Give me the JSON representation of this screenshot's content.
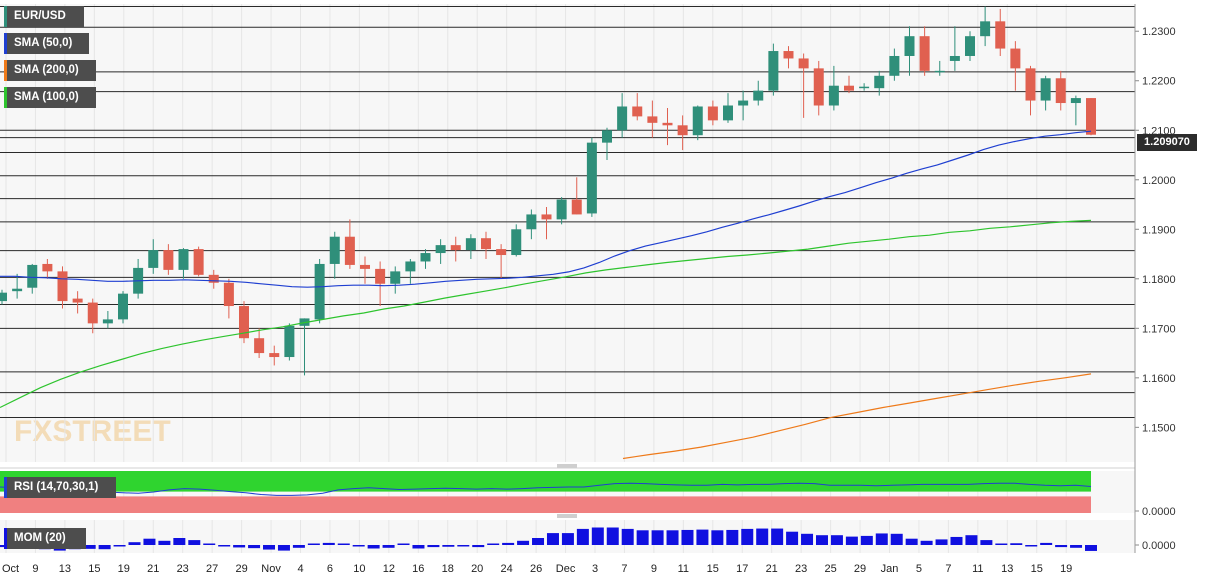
{
  "legend": {
    "symbol": "EUR/USD",
    "sma50": "SMA (50,0)",
    "sma200": "SMA (200,0)",
    "sma100": "SMA (100,0)",
    "rsi": "RSI (14,70,30,1)",
    "mom": "MOM (20)"
  },
  "last_price_label": "1.209070",
  "watermark": "FXSTREET",
  "colors": {
    "up": "#2f8f7a",
    "down": "#e06050",
    "sma50": "#1f3fd1",
    "sma100": "#2ec42e",
    "sma200": "#ee7a1a",
    "mom": "#1010e0",
    "rsi_over": "#2fd42f",
    "rsi_under": "#f08080"
  },
  "chart_data": [
    {
      "type": "candlestick",
      "title": "EUR/USD",
      "x_tick_labels": [
        "Oct",
        "9",
        "13",
        "15",
        "19",
        "21",
        "23",
        "27",
        "29",
        "Nov",
        "4",
        "6",
        "10",
        "12",
        "16",
        "18",
        "20",
        "24",
        "26",
        "Dec",
        "3",
        "7",
        "9",
        "11",
        "15",
        "17",
        "21",
        "23",
        "25",
        "29",
        "Jan",
        "5",
        "7",
        "11",
        "13",
        "15",
        "19"
      ],
      "y_ticks": [
        "1.1500",
        "1.1600",
        "1.1700",
        "1.1800",
        "1.1900",
        "1.2000",
        "1.2100",
        "1.2200",
        "1.2300"
      ],
      "ylim": [
        1.143,
        1.2355
      ],
      "grid": true,
      "horizontal_levels": [
        1.152,
        1.157,
        1.1612,
        1.17,
        1.1748,
        1.1803,
        1.1857,
        1.1915,
        1.1962,
        1.2008,
        1.2055,
        1.2085,
        1.21,
        1.2178,
        1.2218,
        1.2308,
        1.235
      ],
      "candles": [
        [
          1.1755,
          1.1778,
          1.1748,
          1.1772
        ],
        [
          1.1775,
          1.181,
          1.176,
          1.178
        ],
        [
          1.1782,
          1.183,
          1.177,
          1.1828
        ],
        [
          1.183,
          1.184,
          1.18,
          1.1815
        ],
        [
          1.1815,
          1.1825,
          1.174,
          1.1755
        ],
        [
          1.176,
          1.1775,
          1.173,
          1.1752
        ],
        [
          1.1752,
          1.176,
          1.169,
          1.171
        ],
        [
          1.171,
          1.1735,
          1.17,
          1.1718
        ],
        [
          1.1718,
          1.1775,
          1.171,
          1.177
        ],
        [
          1.177,
          1.184,
          1.176,
          1.1822
        ],
        [
          1.1822,
          1.188,
          1.181,
          1.1858
        ],
        [
          1.1858,
          1.187,
          1.1808,
          1.1818
        ],
        [
          1.1818,
          1.1862,
          1.18,
          1.186
        ],
        [
          1.186,
          1.1865,
          1.1805,
          1.1808
        ],
        [
          1.1808,
          1.1818,
          1.178,
          1.1792
        ],
        [
          1.1792,
          1.18,
          1.172,
          1.1745
        ],
        [
          1.1745,
          1.1755,
          1.167,
          1.168
        ],
        [
          1.168,
          1.17,
          1.164,
          1.165
        ],
        [
          1.165,
          1.1665,
          1.1625,
          1.1642
        ],
        [
          1.1642,
          1.171,
          1.1635,
          1.1705
        ],
        [
          1.1705,
          1.172,
          1.1605,
          1.172
        ],
        [
          1.1718,
          1.184,
          1.171,
          1.183
        ],
        [
          1.183,
          1.1895,
          1.18,
          1.1885
        ],
        [
          1.1885,
          1.192,
          1.182,
          1.1828
        ],
        [
          1.1828,
          1.1845,
          1.179,
          1.182
        ],
        [
          1.182,
          1.1835,
          1.1745,
          1.179
        ],
        [
          1.179,
          1.1825,
          1.177,
          1.1815
        ],
        [
          1.1815,
          1.184,
          1.179,
          1.1835
        ],
        [
          1.1835,
          1.186,
          1.182,
          1.1852
        ],
        [
          1.1852,
          1.188,
          1.183,
          1.1868
        ],
        [
          1.1868,
          1.1885,
          1.1835,
          1.1858
        ],
        [
          1.1858,
          1.189,
          1.184,
          1.1882
        ],
        [
          1.1882,
          1.1895,
          1.184,
          1.186
        ],
        [
          1.186,
          1.187,
          1.18,
          1.1848
        ],
        [
          1.1848,
          1.191,
          1.1845,
          1.19
        ],
        [
          1.19,
          1.194,
          1.188,
          1.193
        ],
        [
          1.193,
          1.1945,
          1.188,
          1.192
        ],
        [
          1.192,
          1.1965,
          1.191,
          1.196
        ],
        [
          1.196,
          1.2005,
          1.193,
          1.193
        ],
        [
          1.1932,
          1.2085,
          1.1925,
          1.2075
        ],
        [
          1.2075,
          1.2105,
          1.204,
          1.21
        ],
        [
          1.21,
          1.2175,
          1.2085,
          1.2148
        ],
        [
          1.2148,
          1.2175,
          1.212,
          1.2128
        ],
        [
          1.2128,
          1.216,
          1.2085,
          1.2115
        ],
        [
          1.2115,
          1.2145,
          1.207,
          1.211
        ],
        [
          1.211,
          1.213,
          1.206,
          1.209
        ],
        [
          1.209,
          1.215,
          1.208,
          1.2148
        ],
        [
          1.2148,
          1.216,
          1.211,
          1.212
        ],
        [
          1.212,
          1.2175,
          1.2115,
          1.215
        ],
        [
          1.215,
          1.218,
          1.212,
          1.216
        ],
        [
          1.216,
          1.22,
          1.215,
          1.218
        ],
        [
          1.218,
          1.2275,
          1.217,
          1.226
        ],
        [
          1.226,
          1.227,
          1.2225,
          1.2245
        ],
        [
          1.2245,
          1.2255,
          1.2125,
          1.2225
        ],
        [
          1.2225,
          1.224,
          1.213,
          1.215
        ],
        [
          1.215,
          1.223,
          1.214,
          1.219
        ],
        [
          1.219,
          1.221,
          1.2175,
          1.218
        ],
        [
          1.2185,
          1.2195,
          1.218,
          1.2188
        ],
        [
          1.2185,
          1.222,
          1.217,
          1.221
        ],
        [
          1.221,
          1.2265,
          1.22,
          1.225
        ],
        [
          1.225,
          1.231,
          1.221,
          1.229
        ],
        [
          1.229,
          1.231,
          1.221,
          1.222
        ],
        [
          1.222,
          1.224,
          1.221,
          1.222
        ],
        [
          1.224,
          1.231,
          1.222,
          1.225
        ],
        [
          1.225,
          1.23,
          1.224,
          1.229
        ],
        [
          1.229,
          1.235,
          1.227,
          1.232
        ],
        [
          1.232,
          1.2345,
          1.225,
          1.2265
        ],
        [
          1.2265,
          1.228,
          1.218,
          1.2225
        ],
        [
          1.2225,
          1.223,
          1.213,
          1.216
        ],
        [
          1.216,
          1.221,
          1.214,
          1.2205
        ],
        [
          1.2205,
          1.222,
          1.214,
          1.2155
        ],
        [
          1.2155,
          1.217,
          1.211,
          1.2165
        ],
        [
          1.2165,
          1.2165,
          1.209,
          1.2091
        ]
      ],
      "sma50": [
        1.1805,
        1.1805,
        1.1803,
        1.1802,
        1.18,
        1.1799,
        1.1797,
        1.1795,
        1.1795,
        1.1796,
        1.1797,
        1.1797,
        1.1798,
        1.1797,
        1.1796,
        1.1795,
        1.1793,
        1.179,
        1.1787,
        1.1784,
        1.1783,
        1.1784,
        1.1786,
        1.1787,
        1.1787,
        1.1786,
        1.1787,
        1.1789,
        1.1792,
        1.1795,
        1.1797,
        1.1799,
        1.18,
        1.1801,
        1.1803,
        1.1806,
        1.1809,
        1.1814,
        1.1822,
        1.1833,
        1.1846,
        1.1857,
        1.1866,
        1.1873,
        1.188,
        1.1887,
        1.1895,
        1.1904,
        1.1912,
        1.1921,
        1.1929,
        1.1938,
        1.1947,
        1.1957,
        1.1966,
        1.1974,
        1.1984,
        1.1994,
        1.2003,
        1.2013,
        1.2022,
        1.203,
        1.204,
        1.205,
        1.2061,
        1.207,
        1.2077,
        1.2083,
        1.2088,
        1.2091,
        1.2095,
        1.2098
      ],
      "sma100": [
        1.154,
        1.156,
        1.158,
        1.1597,
        1.1612,
        1.1625,
        1.1637,
        1.1649,
        1.1659,
        1.1668,
        1.1676,
        1.1683,
        1.169,
        1.1697,
        1.1703,
        1.1711,
        1.1718,
        1.1725,
        1.1731,
        1.1739,
        1.1745,
        1.1753,
        1.1761,
        1.1768,
        1.1775,
        1.1782,
        1.179,
        1.1797,
        1.1804,
        1.1812,
        1.1818,
        1.1823,
        1.1828,
        1.1833,
        1.1837,
        1.1841,
        1.1845,
        1.1848,
        1.1852,
        1.1856,
        1.186,
        1.1866,
        1.1872,
        1.1876,
        1.188,
        1.1885,
        1.1888,
        1.1894,
        1.1897,
        1.1902,
        1.1905,
        1.1909,
        1.1913,
        1.1916,
        1.1918
      ],
      "sma200": [
        1.1437,
        1.1445,
        1.1452,
        1.146,
        1.147,
        1.148,
        1.1493,
        1.1506,
        1.152,
        1.153,
        1.154,
        1.1549,
        1.1558,
        1.1567,
        1.1576,
        1.1585,
        1.1593,
        1.16,
        1.1608
      ],
      "rsi": [
        62,
        60,
        63,
        65,
        59,
        57,
        52,
        50,
        48,
        47,
        50,
        55,
        58,
        57,
        54,
        51,
        48,
        44,
        42,
        42,
        43,
        47,
        55,
        58,
        60,
        58,
        56,
        57,
        58,
        59,
        58,
        57,
        58,
        57,
        58,
        60,
        61,
        62,
        62,
        66,
        70,
        71,
        70,
        68,
        67,
        66,
        66,
        68,
        67,
        68,
        68,
        70,
        71,
        70,
        66,
        66,
        66,
        65,
        66,
        67,
        68,
        68,
        68,
        68,
        70,
        71,
        71,
        68,
        66,
        65,
        66,
        63
      ],
      "mom": [
        -0.003,
        -0.005,
        -0.004,
        -0.006,
        -0.008,
        -0.006,
        -0.0055,
        -0.006,
        -0.002,
        0.004,
        0.009,
        0.006,
        0.01,
        0.007,
        0.002,
        -0.001,
        -0.0035,
        -0.0045,
        -0.0065,
        -0.008,
        -0.004,
        0.001,
        0.003,
        0.002,
        -0.002,
        -0.005,
        -0.004,
        0.001,
        -0.005,
        -0.003,
        -0.0025,
        -0.0015,
        -0.003,
        0.0015,
        0.003,
        0.006,
        0.01,
        0.017,
        0.017,
        0.023,
        0.025,
        0.025,
        0.023,
        0.021,
        0.021,
        0.021,
        0.0215,
        0.022,
        0.021,
        0.0215,
        0.023,
        0.0235,
        0.0235,
        0.019,
        0.016,
        0.014,
        0.014,
        0.012,
        0.013,
        0.0165,
        0.016,
        0.009,
        0.006,
        0.008,
        0.0115,
        0.014,
        0.007,
        0.002,
        0.0025,
        -0.001,
        0.003,
        -0.003,
        -0.004,
        -0.0085
      ]
    }
  ]
}
